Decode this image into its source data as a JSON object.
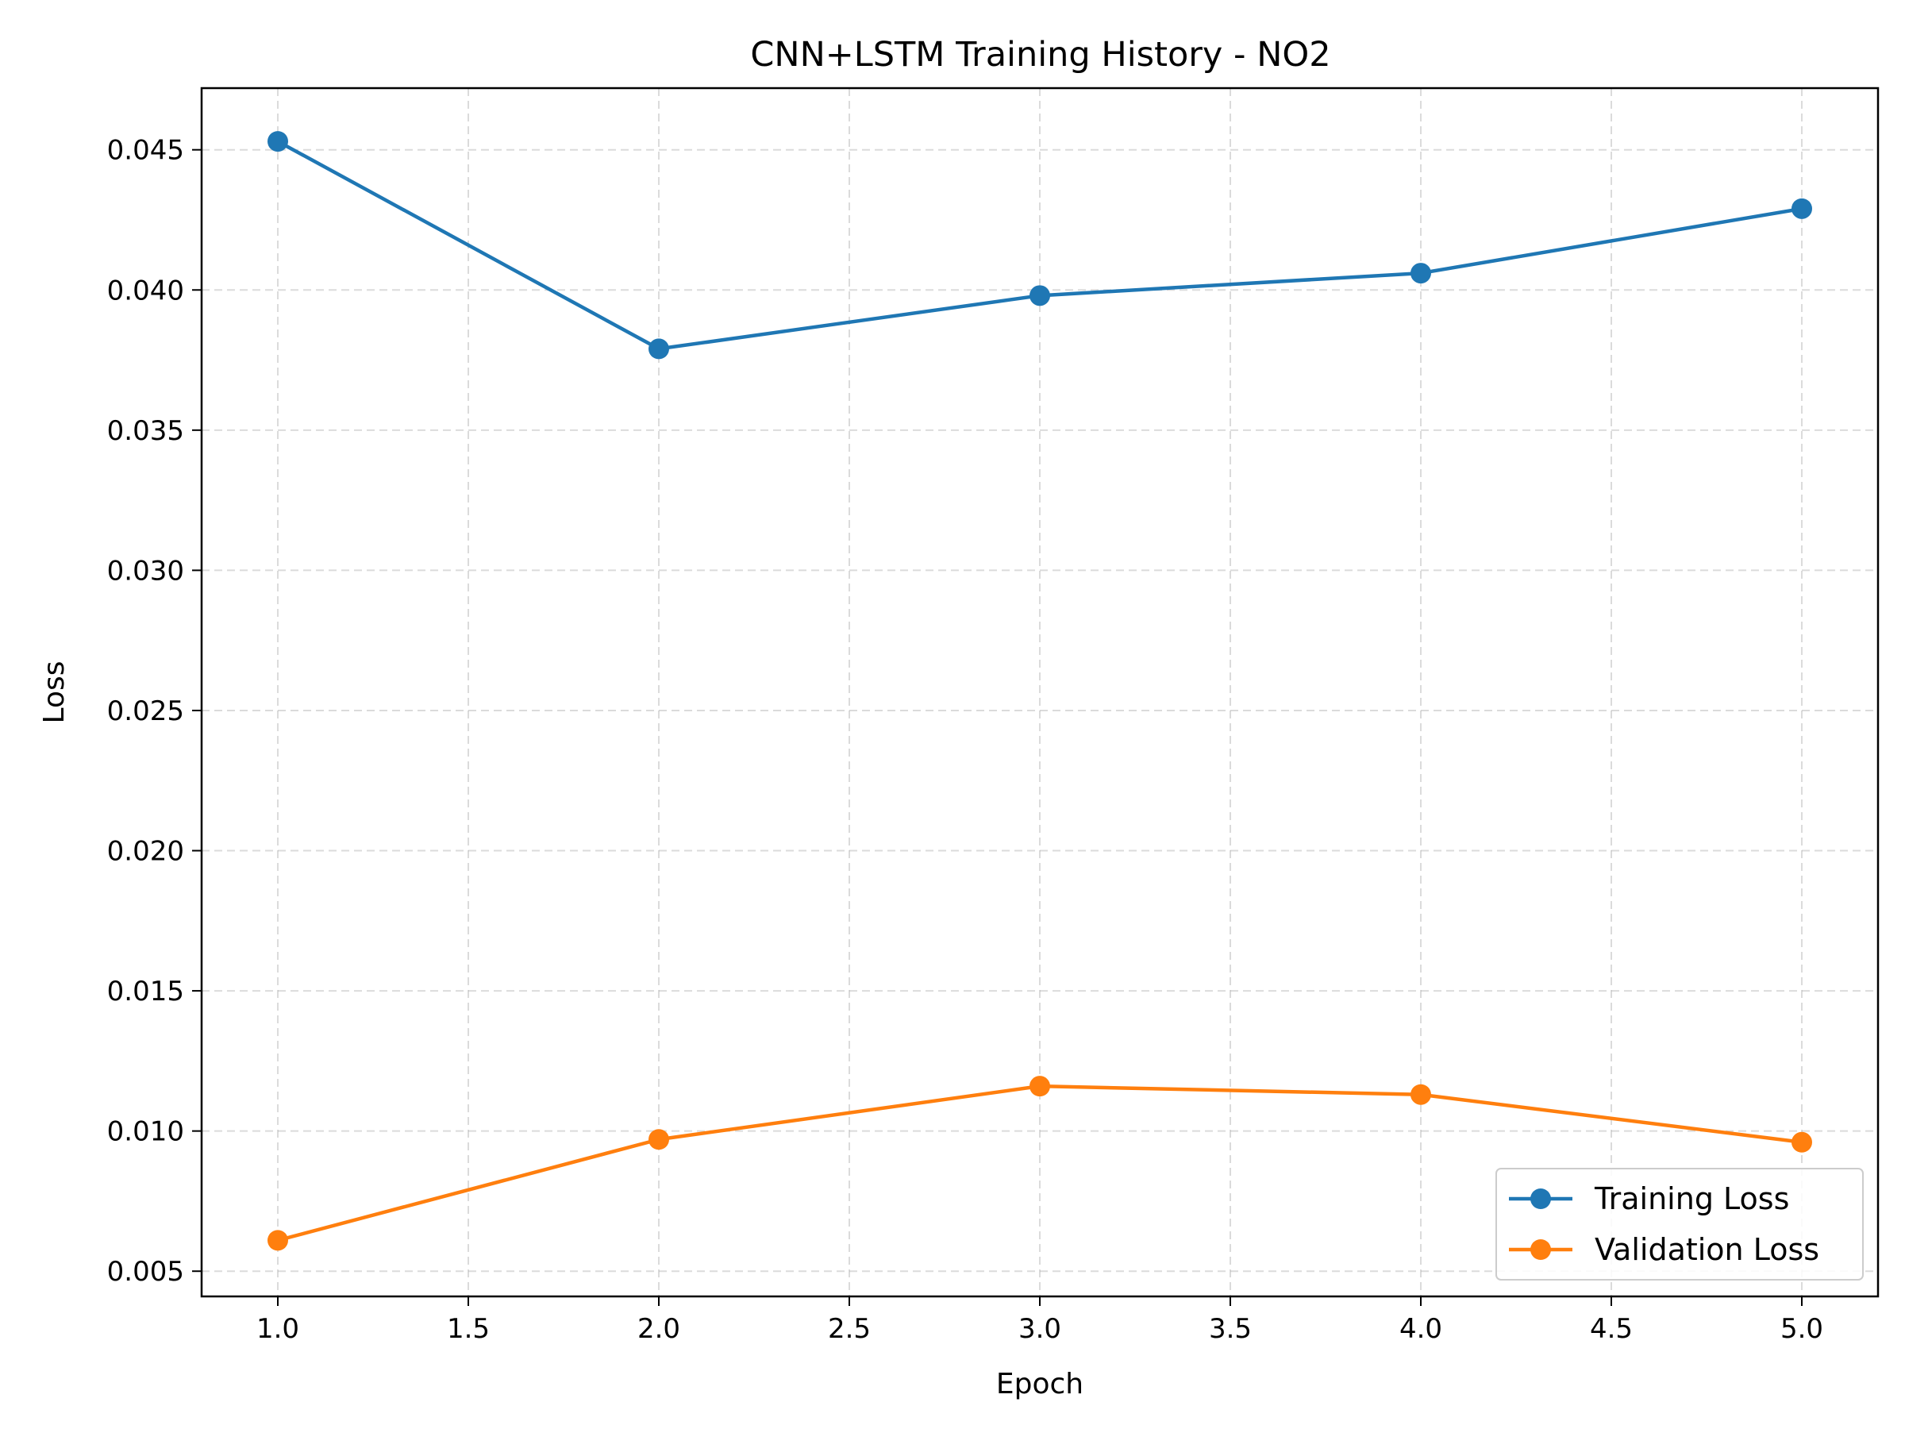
{
  "chart_data": {
    "type": "line",
    "title": "CNN+LSTM Training History - NO2",
    "xlabel": "Epoch",
    "ylabel": "Loss",
    "x": [
      1,
      2,
      3,
      4,
      5
    ],
    "xlim": [
      0.8,
      5.2
    ],
    "ylim": [
      0.0041,
      0.0472
    ],
    "xticks": [
      "1.0",
      "1.5",
      "2.0",
      "2.5",
      "3.0",
      "3.5",
      "4.0",
      "4.5",
      "5.0"
    ],
    "yticks": [
      "0.005",
      "0.010",
      "0.015",
      "0.020",
      "0.025",
      "0.030",
      "0.035",
      "0.040",
      "0.045"
    ],
    "grid": true,
    "legend_position": "lower-right",
    "series": [
      {
        "name": "Training Loss",
        "color": "#1f77b4",
        "values": [
          0.0453,
          0.0379,
          0.0398,
          0.0406,
          0.0429
        ]
      },
      {
        "name": "Validation Loss",
        "color": "#ff7f0e",
        "values": [
          0.0061,
          0.0097,
          0.0116,
          0.0113,
          0.0096
        ]
      }
    ]
  }
}
